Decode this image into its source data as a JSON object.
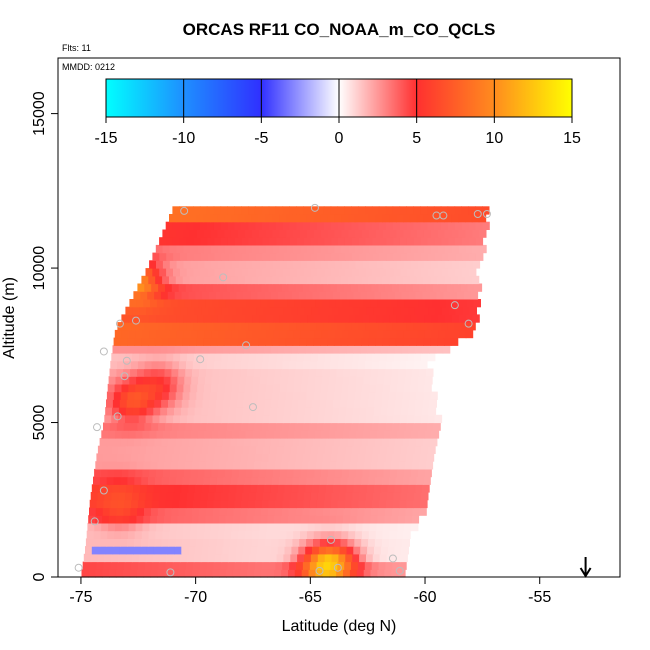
{
  "chart_data": {
    "type": "heatmap",
    "title": "ORCAS RF11 CO_NOAA_m_CO_QCLS",
    "flights_label": "Flts: 11",
    "date_label": "MMDD: 0212",
    "xlabel": "Latitude (deg N)",
    "ylabel": "Altitude (m)",
    "xlim": [
      -76.0,
      -51.5
    ],
    "ylim": [
      0,
      16800
    ],
    "x_ticks": [
      -75,
      -70,
      -65,
      -60,
      -55
    ],
    "x_tick_labels": [
      "-75",
      "-70",
      "-65",
      "-60",
      "-55"
    ],
    "y_ticks": [
      0,
      5000,
      10000,
      15000
    ],
    "y_tick_labels": [
      "0",
      "5000",
      "10000",
      "15000"
    ],
    "colorbar": {
      "range": [
        -15,
        15
      ],
      "ticks": [
        -15,
        -10,
        -5,
        0,
        5,
        10,
        15
      ],
      "tick_labels": [
        "-15",
        "-10",
        "-5",
        "0",
        "5",
        "10",
        "15"
      ],
      "stops": [
        {
          "value": -15,
          "color": "#00ffff"
        },
        {
          "value": -10,
          "color": "#1e8fff"
        },
        {
          "value": -5,
          "color": "#3030ff"
        },
        {
          "value": 0,
          "color": "#ffffff"
        },
        {
          "value": 5,
          "color": "#ff3030"
        },
        {
          "value": 10,
          "color": "#ff8c1e"
        },
        {
          "value": 15,
          "color": "#ffff00"
        }
      ]
    },
    "field_bands": [
      {
        "alt_min": 11400,
        "alt_max": 11900,
        "value": 6.5
      },
      {
        "alt_min": 10700,
        "alt_max": 11400,
        "value": 3.2
      },
      {
        "alt_min": 10200,
        "alt_max": 10700,
        "value": 2.0
      },
      {
        "alt_min": 9500,
        "alt_max": 10200,
        "value": 1.2
      },
      {
        "alt_min": 8900,
        "alt_max": 9500,
        "value": 2.5
      },
      {
        "alt_min": 8300,
        "alt_max": 8900,
        "value": 4.8
      },
      {
        "alt_min": 7600,
        "alt_max": 8300,
        "value": 6.0
      },
      {
        "alt_min": 7300,
        "alt_max": 7600,
        "value": 1.5
      },
      {
        "alt_min": 6800,
        "alt_max": 7300,
        "value": 0.3
      },
      {
        "alt_min": 5000,
        "alt_max": 6800,
        "value": 0.6
      },
      {
        "alt_min": 4400,
        "alt_max": 5000,
        "value": 2.0
      },
      {
        "alt_min": 3600,
        "alt_max": 4400,
        "value": 1.2
      },
      {
        "alt_min": 3000,
        "alt_max": 3600,
        "value": 2.2
      },
      {
        "alt_min": 2300,
        "alt_max": 3000,
        "value": 3.5
      },
      {
        "alt_min": 1700,
        "alt_max": 2300,
        "value": 2.2
      },
      {
        "alt_min": 1200,
        "alt_max": 1700,
        "value": 0.4
      },
      {
        "alt_min": 500,
        "alt_max": 1200,
        "value": 0.5
      },
      {
        "alt_min": 0,
        "alt_max": 500,
        "value": 2.5
      }
    ],
    "field_extent": [
      {
        "alt": 11900,
        "lat_min": -71.0,
        "lat_max": -57.3
      },
      {
        "alt": 10000,
        "lat_min": -72.1,
        "lat_max": -57.8
      },
      {
        "alt": 8000,
        "lat_min": -73.5,
        "lat_max": -57.9
      },
      {
        "alt": 7000,
        "lat_min": -73.7,
        "lat_max": -60.0
      },
      {
        "alt": 5000,
        "lat_min": -74.0,
        "lat_max": -59.5
      },
      {
        "alt": 4000,
        "lat_min": -74.3,
        "lat_max": -59.6
      },
      {
        "alt": 2500,
        "lat_min": -74.6,
        "lat_max": -60.0
      },
      {
        "alt": 1000,
        "lat_min": -74.8,
        "lat_max": -60.9
      },
      {
        "alt": 0,
        "lat_min": -75.0,
        "lat_max": -60.9
      }
    ],
    "hotspots": [
      {
        "lat": -72.6,
        "alt": 9600,
        "value": 9.0
      },
      {
        "lat": -72.8,
        "alt": 5700,
        "value": 5.5
      },
      {
        "lat": -71.6,
        "alt": 6200,
        "value": 4.0
      },
      {
        "lat": -73.3,
        "alt": 2400,
        "value": 5.0
      },
      {
        "lat": -64.5,
        "alt": 300,
        "value": 9.5
      },
      {
        "lat": -63.8,
        "alt": 400,
        "value": 7.0
      }
    ],
    "cold_spots": [
      {
        "lat_min": -74.5,
        "lat_max": -70.6,
        "alt_min": 650,
        "alt_max": 1050,
        "value": -3.0
      }
    ],
    "observations": [
      {
        "lat": -70.5,
        "alt": 11850
      },
      {
        "lat": -64.8,
        "alt": 11950
      },
      {
        "lat": -59.5,
        "alt": 11700
      },
      {
        "lat": -59.2,
        "alt": 11700
      },
      {
        "lat": -57.7,
        "alt": 11750
      },
      {
        "lat": -57.3,
        "alt": 11750
      },
      {
        "lat": -68.8,
        "alt": 9700
      },
      {
        "lat": -58.7,
        "alt": 8800
      },
      {
        "lat": -58.1,
        "alt": 8200
      },
      {
        "lat": -73.3,
        "alt": 8200
      },
      {
        "lat": -72.6,
        "alt": 8300
      },
      {
        "lat": -74.0,
        "alt": 7300
      },
      {
        "lat": -73.0,
        "alt": 7000
      },
      {
        "lat": -69.8,
        "alt": 7050
      },
      {
        "lat": -67.8,
        "alt": 7500
      },
      {
        "lat": -73.1,
        "alt": 6500
      },
      {
        "lat": -73.4,
        "alt": 5200
      },
      {
        "lat": -67.5,
        "alt": 5500
      },
      {
        "lat": -74.3,
        "alt": 4850
      },
      {
        "lat": -74.0,
        "alt": 2800
      },
      {
        "lat": -74.4,
        "alt": 1800
      },
      {
        "lat": -64.1,
        "alt": 1200
      },
      {
        "lat": -75.1,
        "alt": 300
      },
      {
        "lat": -71.1,
        "alt": 150
      },
      {
        "lat": -64.6,
        "alt": 200
      },
      {
        "lat": -63.8,
        "alt": 300
      },
      {
        "lat": -61.1,
        "alt": 200
      },
      {
        "lat": -61.4,
        "alt": 600
      }
    ],
    "arrow_lat": -53.0
  }
}
